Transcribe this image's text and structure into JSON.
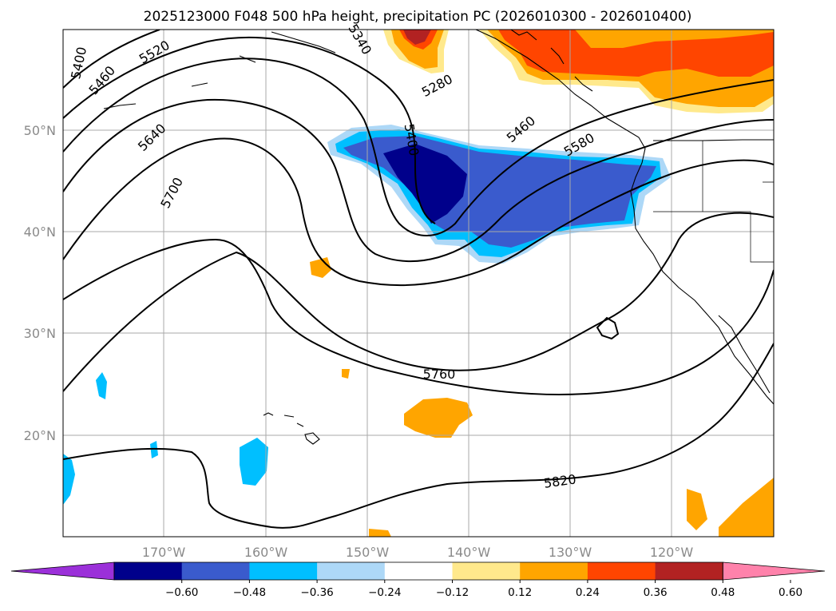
{
  "title": "2025123000 F048 500 hPa height, precipitation PC (2026010300 - 2026010400)",
  "lon_labels": [
    "170°W",
    "160°W",
    "150°W",
    "140°W",
    "130°W",
    "120°W"
  ],
  "lat_labels": [
    "50°N",
    "40°N",
    "30°N",
    "20°N"
  ],
  "contour_labels": [
    "5400",
    "5460",
    "5520",
    "5340",
    "5280",
    "5400",
    "5460",
    "5580",
    "5640",
    "5700",
    "5760",
    "5820"
  ],
  "colorbar": {
    "ticks": [
      "−0.60",
      "−0.48",
      "−0.36",
      "−0.24",
      "−0.12",
      "0.12",
      "0.24",
      "0.36",
      "0.48",
      "0.60"
    ],
    "colors": [
      "#9b30d9",
      "#00008b",
      "#3a5bcd",
      "#00bfff",
      "#add8f7",
      "#ffffff",
      "#ffe98c",
      "#ffa500",
      "#ff4500",
      "#b22222",
      "#ff82ab"
    ]
  },
  "colors": {
    "neg1": "#add8f7",
    "neg2": "#00bfff",
    "neg3": "#3a5bcd",
    "neg4": "#00008b",
    "pos1": "#ffe98c",
    "pos2": "#ffa500",
    "pos3": "#ff4500",
    "pos4": "#b22222"
  }
}
